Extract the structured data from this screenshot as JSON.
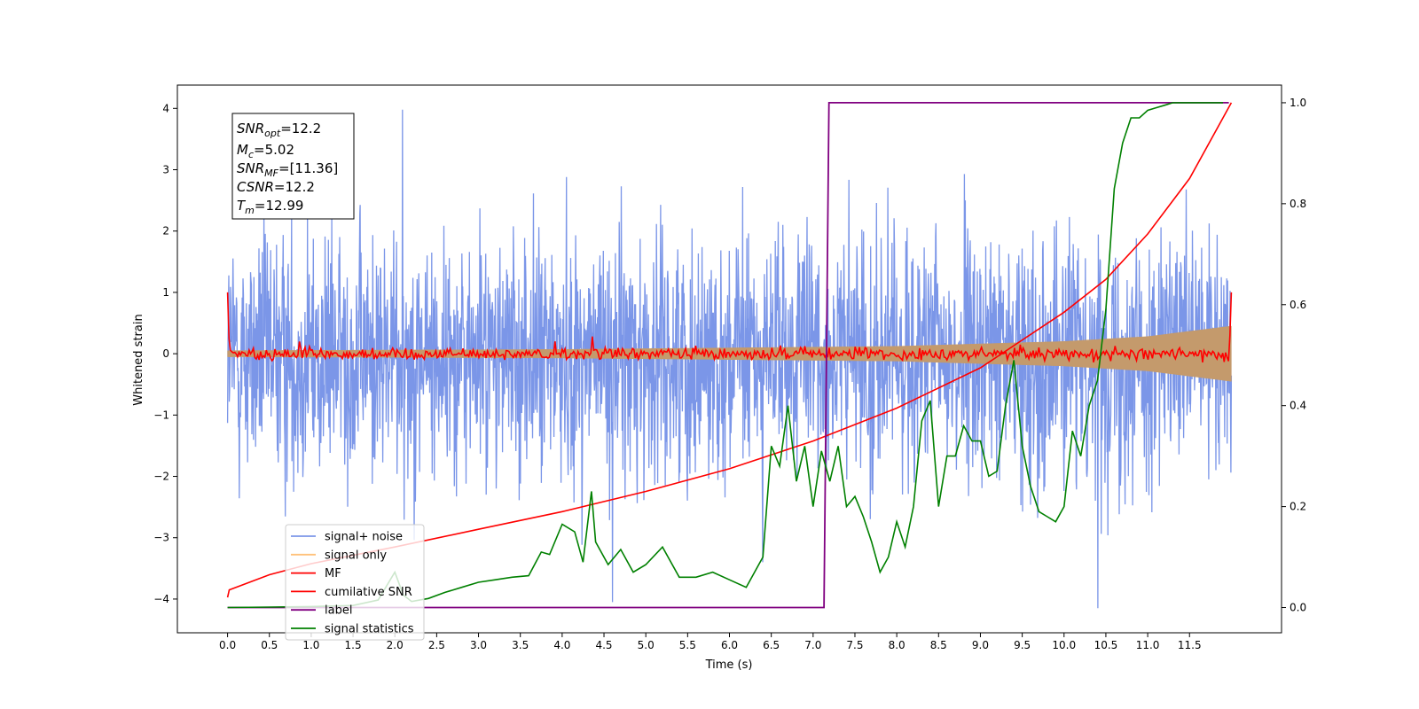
{
  "chart_data": {
    "type": "line",
    "xlabel": "Time (s)",
    "ylabel": "Whitened strain",
    "xlim": [
      -0.6,
      12.6
    ],
    "ylim": [
      -4.55,
      4.38
    ],
    "y2lim": [
      -0.05,
      1.035
    ],
    "xticks": [
      "0.0",
      "0.5",
      "1.0",
      "1.5",
      "2.0",
      "2.5",
      "3.0",
      "3.5",
      "4.0",
      "4.5",
      "5.0",
      "5.5",
      "6.0",
      "6.5",
      "7.0",
      "7.5",
      "8.0",
      "8.5",
      "9.0",
      "9.5",
      "10.0",
      "10.5",
      "11.0",
      "11.5"
    ],
    "yticks": [
      "4",
      "3",
      "2",
      "1",
      "0",
      "−1",
      "−2",
      "−3",
      "−4"
    ],
    "y2ticks": [
      "0.0",
      "0.2",
      "0.4",
      "0.6",
      "0.8",
      "1.0"
    ],
    "annotation": {
      "snr_opt": {
        "base": "SNR",
        "sub": "opt",
        "value": "=12.2"
      },
      "mc": {
        "base": "M",
        "sub": "c",
        "value": "=5.02"
      },
      "snr_mf": {
        "base": "SNR",
        "sub": "MF",
        "value": "=[11.36]"
      },
      "csnr": {
        "base": "CSNR",
        "value": "=12.2"
      },
      "tm": {
        "base": "T",
        "sub": "m",
        "value": "=12.99"
      }
    },
    "legend": {
      "placement": "lower-left",
      "entries": [
        {
          "label": "signal+ noise",
          "color": "#7b96e8"
        },
        {
          "label": "signal only",
          "color": "#ffc17a"
        },
        {
          "label": "MF",
          "color": "#ff0000"
        },
        {
          "label": "cumilative SNR",
          "color": "#ff0000"
        },
        {
          "label": "label",
          "color": "#800080"
        },
        {
          "label": "signal statistics",
          "color": "#008000"
        }
      ]
    },
    "series": [
      {
        "name": "signal+ noise",
        "axis": "left",
        "color": "#7b96e8",
        "kind": "noise",
        "x_range": [
          0.0,
          12.0
        ],
        "typical_range": [
          -2.1,
          2.0
        ],
        "peaks": [
          3.98,
          -4.15
        ]
      },
      {
        "name": "signal only",
        "axis": "left",
        "color": "#c49a6c",
        "kind": "chirp-envelope",
        "envelope": {
          "x": [
            0.0,
            4.0,
            8.0,
            10.0,
            11.0,
            12.0
          ],
          "amp": [
            0.05,
            0.07,
            0.12,
            0.2,
            0.28,
            0.45
          ]
        }
      },
      {
        "name": "MF",
        "axis": "left",
        "color": "#ff0000",
        "kind": "matched-filter",
        "x_range": [
          0.0,
          12.0
        ],
        "edge_values": [
          1.0,
          1.0
        ],
        "typical_range": [
          -0.12,
          0.12
        ]
      },
      {
        "name": "cumilative SNR",
        "axis": "right",
        "color": "#ff0000",
        "x": [
          0.0,
          0.02,
          0.5,
          1.0,
          2.0,
          3.0,
          4.0,
          5.0,
          6.0,
          7.0,
          8.0,
          9.0,
          10.0,
          10.5,
          11.0,
          11.5,
          12.0
        ],
        "y": [
          0.02,
          0.035,
          0.065,
          0.087,
          0.12,
          0.155,
          0.19,
          0.23,
          0.275,
          0.33,
          0.395,
          0.475,
          0.585,
          0.65,
          0.74,
          0.85,
          1.0
        ]
      },
      {
        "name": "label",
        "axis": "right",
        "color": "#800080",
        "x": [
          0.0,
          7.13,
          7.19,
          11.97
        ],
        "y": [
          0.0,
          0.0,
          1.0,
          1.0
        ]
      },
      {
        "name": "signal statistics",
        "axis": "right",
        "color": "#008000",
        "x": [
          0.0,
          0.5,
          1.0,
          1.5,
          1.8,
          2.0,
          2.1,
          2.2,
          2.4,
          2.6,
          2.8,
          3.0,
          3.2,
          3.4,
          3.6,
          3.75,
          3.85,
          4.0,
          4.15,
          4.25,
          4.35,
          4.4,
          4.55,
          4.7,
          4.85,
          5.0,
          5.2,
          5.4,
          5.6,
          5.8,
          6.0,
          6.2,
          6.4,
          6.5,
          6.6,
          6.7,
          6.8,
          6.9,
          7.0,
          7.1,
          7.2,
          7.3,
          7.4,
          7.5,
          7.6,
          7.7,
          7.8,
          7.9,
          8.0,
          8.1,
          8.2,
          8.3,
          8.4,
          8.5,
          8.6,
          8.7,
          8.8,
          8.9,
          9.0,
          9.1,
          9.2,
          9.3,
          9.4,
          9.5,
          9.6,
          9.7,
          9.8,
          9.9,
          10.0,
          10.1,
          10.2,
          10.3,
          10.4,
          10.5,
          10.6,
          10.7,
          10.8,
          10.9,
          11.0,
          11.1,
          11.2,
          11.3,
          11.5,
          11.7,
          11.9
        ],
        "y": [
          0.0,
          0.001,
          0.002,
          0.004,
          0.015,
          0.07,
          0.025,
          0.012,
          0.018,
          0.03,
          0.04,
          0.05,
          0.055,
          0.06,
          0.063,
          0.11,
          0.105,
          0.165,
          0.15,
          0.09,
          0.23,
          0.13,
          0.085,
          0.115,
          0.07,
          0.085,
          0.12,
          0.06,
          0.06,
          0.07,
          0.055,
          0.04,
          0.1,
          0.32,
          0.28,
          0.4,
          0.25,
          0.32,
          0.2,
          0.31,
          0.25,
          0.32,
          0.2,
          0.22,
          0.18,
          0.13,
          0.07,
          0.1,
          0.17,
          0.12,
          0.2,
          0.37,
          0.41,
          0.2,
          0.3,
          0.3,
          0.36,
          0.33,
          0.33,
          0.26,
          0.27,
          0.4,
          0.49,
          0.32,
          0.24,
          0.19,
          0.18,
          0.17,
          0.2,
          0.35,
          0.3,
          0.4,
          0.45,
          0.59,
          0.83,
          0.92,
          0.97,
          0.97,
          0.985,
          0.99,
          0.995,
          1.0,
          1.0,
          1.0,
          1.0
        ]
      }
    ]
  }
}
